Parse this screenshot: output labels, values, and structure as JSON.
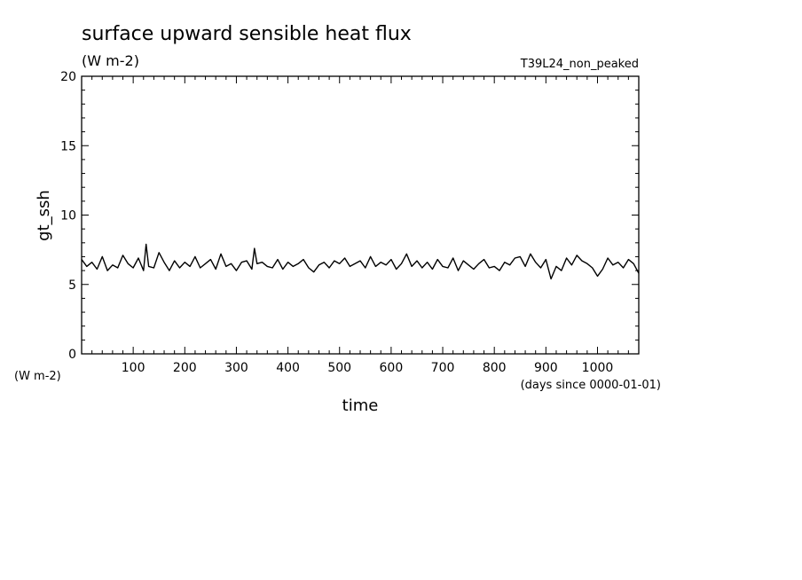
{
  "chart_data": {
    "type": "line",
    "title": "surface upward sensible heat flux",
    "subtitle": "(W m-2)",
    "run_label": "T39L24_non_peaked",
    "ylabel": "gt_ssh",
    "yunits": "(W m-2)",
    "xlabel": "time",
    "xunits": "(days since 0000-01-01)",
    "xlim": [
      0,
      1080
    ],
    "ylim": [
      0,
      20
    ],
    "xticks": [
      100,
      200,
      300,
      400,
      500,
      600,
      700,
      800,
      900,
      1000
    ],
    "xtick_labels": [
      "100",
      "200",
      "300",
      "400",
      "500",
      "600",
      "700",
      "800",
      "900",
      "1000"
    ],
    "yticks": [
      0,
      5,
      10,
      15,
      20
    ],
    "ytick_labels": [
      "0",
      "5",
      "10",
      "15",
      "20"
    ],
    "grid": false,
    "series": [
      {
        "x": [
          0,
          10,
          20,
          30,
          40,
          50,
          60,
          70,
          80,
          90,
          100,
          110,
          120,
          125,
          130,
          140,
          150,
          160,
          170,
          180,
          190,
          200,
          210,
          220,
          230,
          240,
          250,
          260,
          270,
          280,
          290,
          300,
          310,
          320,
          330,
          335,
          340,
          350,
          360,
          370,
          380,
          390,
          400,
          410,
          420,
          430,
          440,
          450,
          460,
          470,
          480,
          490,
          500,
          510,
          520,
          530,
          540,
          550,
          560,
          570,
          580,
          590,
          600,
          610,
          620,
          630,
          640,
          650,
          660,
          670,
          680,
          690,
          700,
          710,
          720,
          730,
          740,
          750,
          760,
          770,
          780,
          790,
          800,
          810,
          820,
          830,
          840,
          850,
          860,
          870,
          880,
          890,
          900,
          910,
          920,
          930,
          940,
          950,
          960,
          970,
          980,
          990,
          1000,
          1010,
          1020,
          1030,
          1040,
          1050,
          1060,
          1070,
          1080
        ],
        "y": [
          6.8,
          6.3,
          6.6,
          6.1,
          7.0,
          6.0,
          6.4,
          6.2,
          7.1,
          6.5,
          6.2,
          6.9,
          6.0,
          7.9,
          6.3,
          6.2,
          7.3,
          6.6,
          6.0,
          6.7,
          6.2,
          6.6,
          6.3,
          7.0,
          6.2,
          6.5,
          6.8,
          6.1,
          7.2,
          6.3,
          6.5,
          6.0,
          6.6,
          6.7,
          6.1,
          7.6,
          6.5,
          6.6,
          6.3,
          6.2,
          6.8,
          6.1,
          6.6,
          6.3,
          6.5,
          6.8,
          6.2,
          5.9,
          6.4,
          6.6,
          6.2,
          6.7,
          6.5,
          6.9,
          6.3,
          6.5,
          6.7,
          6.2,
          7.0,
          6.3,
          6.6,
          6.4,
          6.8,
          6.1,
          6.5,
          7.2,
          6.3,
          6.7,
          6.2,
          6.6,
          6.1,
          6.8,
          6.3,
          6.2,
          6.9,
          6.0,
          6.7,
          6.4,
          6.1,
          6.5,
          6.8,
          6.2,
          6.3,
          6.0,
          6.6,
          6.4,
          6.9,
          7.0,
          6.3,
          7.2,
          6.6,
          6.2,
          6.8,
          5.4,
          6.3,
          6.0,
          6.9,
          6.4,
          7.1,
          6.7,
          6.5,
          6.2,
          5.6,
          6.1,
          6.9,
          6.4,
          6.6,
          6.2,
          6.8,
          6.5,
          5.8
        ]
      }
    ]
  }
}
